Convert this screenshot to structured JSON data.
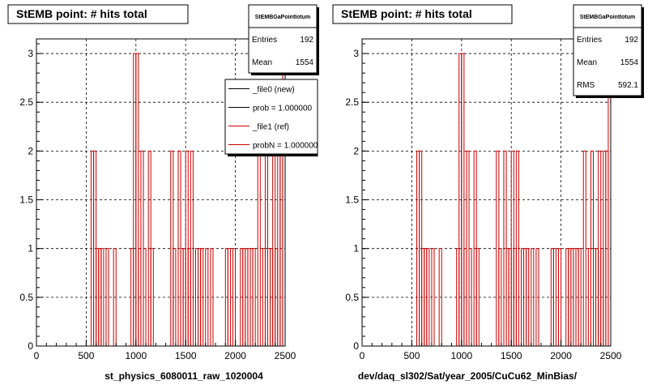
{
  "colors": {
    "hist": "#cc0000",
    "line_new": "#000000",
    "line_ref": "#cc0000",
    "background": "#ffffff"
  },
  "chart_data": [
    {
      "type": "bar",
      "title": "StEMB point: # hits total",
      "xlabel": "st_physics_6080011_raw_1020004",
      "ylabel": "",
      "xlim": [
        0,
        2500
      ],
      "ylim": [
        0,
        3.15
      ],
      "xticks": [
        "0",
        "500",
        "1000",
        "1500",
        "2000",
        "2500"
      ],
      "yticks": [
        "0",
        "0.5",
        "1",
        "1.5",
        "2",
        "2.5",
        "3"
      ],
      "grid": true,
      "bin_width": 25,
      "bins": [
        {
          "x": 550,
          "y": 2
        },
        {
          "x": 575,
          "y": 2
        },
        {
          "x": 600,
          "y": 1
        },
        {
          "x": 625,
          "y": 1
        },
        {
          "x": 650,
          "y": 1
        },
        {
          "x": 700,
          "y": 1
        },
        {
          "x": 775,
          "y": 1
        },
        {
          "x": 950,
          "y": 1
        },
        {
          "x": 975,
          "y": 3
        },
        {
          "x": 1000,
          "y": 3
        },
        {
          "x": 1025,
          "y": 1
        },
        {
          "x": 1050,
          "y": 2
        },
        {
          "x": 1075,
          "y": 1
        },
        {
          "x": 1125,
          "y": 2
        },
        {
          "x": 1150,
          "y": 1
        },
        {
          "x": 1350,
          "y": 2
        },
        {
          "x": 1375,
          "y": 1
        },
        {
          "x": 1425,
          "y": 2
        },
        {
          "x": 1450,
          "y": 1
        },
        {
          "x": 1475,
          "y": 1
        },
        {
          "x": 1500,
          "y": 2
        },
        {
          "x": 1525,
          "y": 1
        },
        {
          "x": 1550,
          "y": 2
        },
        {
          "x": 1600,
          "y": 1
        },
        {
          "x": 1625,
          "y": 1
        },
        {
          "x": 1650,
          "y": 1
        },
        {
          "x": 1700,
          "y": 1
        },
        {
          "x": 1750,
          "y": 1
        },
        {
          "x": 1900,
          "y": 1
        },
        {
          "x": 1925,
          "y": 1
        },
        {
          "x": 1975,
          "y": 1
        },
        {
          "x": 2050,
          "y": 1
        },
        {
          "x": 2075,
          "y": 1
        },
        {
          "x": 2100,
          "y": 1
        },
        {
          "x": 2125,
          "y": 1
        },
        {
          "x": 2150,
          "y": 1
        },
        {
          "x": 2175,
          "y": 1
        },
        {
          "x": 2225,
          "y": 2
        },
        {
          "x": 2275,
          "y": 1
        },
        {
          "x": 2300,
          "y": 2
        },
        {
          "x": 2325,
          "y": 1
        },
        {
          "x": 2350,
          "y": 1
        },
        {
          "x": 2375,
          "y": 2
        },
        {
          "x": 2400,
          "y": 1
        },
        {
          "x": 2425,
          "y": 2
        },
        {
          "x": 2450,
          "y": 2
        },
        {
          "x": 2475,
          "y": 3
        }
      ],
      "stats": {
        "name": "StEMBGaPointIotum",
        "rows": [
          {
            "label": "Entries",
            "value": "192"
          },
          {
            "label": "Mean",
            "value": "1554"
          }
        ]
      },
      "legend": [
        {
          "label": "_file0 (new)",
          "color": "#000000"
        },
        {
          "label": "prob = 1.000000",
          "color": "#000000"
        },
        {
          "label": "_file1 (ref)",
          "color": "#cc0000"
        },
        {
          "label": "probN = 1.000000",
          "color": "#cc0000"
        }
      ]
    },
    {
      "type": "bar",
      "title": "StEMB point: # hits total",
      "xlabel": "dev/daq_sl302/Sat/year_2005/CuCu62_MinBias/",
      "ylabel": "",
      "xlim": [
        0,
        2500
      ],
      "ylim": [
        0,
        3.15
      ],
      "xticks": [
        "0",
        "500",
        "1000",
        "1500",
        "2000",
        "2500"
      ],
      "yticks": [
        "0",
        "0.5",
        "1",
        "1.5",
        "2",
        "2.5",
        "3"
      ],
      "grid": true,
      "bin_width": 25,
      "bins": [
        {
          "x": 550,
          "y": 2
        },
        {
          "x": 575,
          "y": 2
        },
        {
          "x": 600,
          "y": 1
        },
        {
          "x": 625,
          "y": 1
        },
        {
          "x": 650,
          "y": 1
        },
        {
          "x": 700,
          "y": 1
        },
        {
          "x": 775,
          "y": 1
        },
        {
          "x": 950,
          "y": 1
        },
        {
          "x": 975,
          "y": 3
        },
        {
          "x": 1000,
          "y": 3
        },
        {
          "x": 1025,
          "y": 1
        },
        {
          "x": 1050,
          "y": 2
        },
        {
          "x": 1075,
          "y": 1
        },
        {
          "x": 1125,
          "y": 2
        },
        {
          "x": 1150,
          "y": 1
        },
        {
          "x": 1350,
          "y": 2
        },
        {
          "x": 1375,
          "y": 1
        },
        {
          "x": 1425,
          "y": 2
        },
        {
          "x": 1450,
          "y": 1
        },
        {
          "x": 1475,
          "y": 1
        },
        {
          "x": 1500,
          "y": 2
        },
        {
          "x": 1525,
          "y": 1
        },
        {
          "x": 1550,
          "y": 2
        },
        {
          "x": 1600,
          "y": 1
        },
        {
          "x": 1625,
          "y": 1
        },
        {
          "x": 1650,
          "y": 1
        },
        {
          "x": 1700,
          "y": 1
        },
        {
          "x": 1750,
          "y": 1
        },
        {
          "x": 1900,
          "y": 1
        },
        {
          "x": 1925,
          "y": 1
        },
        {
          "x": 1975,
          "y": 1
        },
        {
          "x": 2050,
          "y": 1
        },
        {
          "x": 2075,
          "y": 1
        },
        {
          "x": 2100,
          "y": 1
        },
        {
          "x": 2125,
          "y": 1
        },
        {
          "x": 2150,
          "y": 1
        },
        {
          "x": 2175,
          "y": 1
        },
        {
          "x": 2225,
          "y": 2
        },
        {
          "x": 2275,
          "y": 1
        },
        {
          "x": 2300,
          "y": 2
        },
        {
          "x": 2325,
          "y": 1
        },
        {
          "x": 2350,
          "y": 1
        },
        {
          "x": 2375,
          "y": 2
        },
        {
          "x": 2400,
          "y": 1
        },
        {
          "x": 2425,
          "y": 2
        },
        {
          "x": 2450,
          "y": 2
        },
        {
          "x": 2475,
          "y": 3
        }
      ],
      "stats": {
        "name": "StEMBGaPointIotum",
        "rows": [
          {
            "label": "Entries",
            "value": "192"
          },
          {
            "label": "Mean",
            "value": "1554"
          },
          {
            "label": "RMS",
            "value": "592.1"
          }
        ]
      },
      "legend": []
    }
  ]
}
